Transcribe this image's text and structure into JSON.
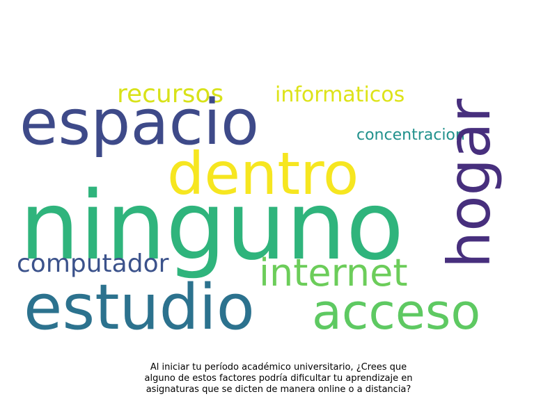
{
  "wordcloud": {
    "words": [
      {
        "id": "recursos",
        "text": "recursos",
        "color": "#d8e219"
      },
      {
        "id": "informaticos",
        "text": "informaticos",
        "color": "#dde318"
      },
      {
        "id": "espacio",
        "text": "espacio",
        "color": "#3e4a89"
      },
      {
        "id": "concentracion",
        "text": "concentracion",
        "color": "#21918c"
      },
      {
        "id": "dentro",
        "text": "dentro",
        "color": "#f6e620"
      },
      {
        "id": "ninguno",
        "text": "ninguno",
        "color": "#2fb47c"
      },
      {
        "id": "computador",
        "text": "computador",
        "color": "#3b528b"
      },
      {
        "id": "internet",
        "text": "internet",
        "color": "#6ccd5a"
      },
      {
        "id": "estudio",
        "text": "estudio",
        "color": "#2c728e"
      },
      {
        "id": "acceso",
        "text": "acceso",
        "color": "#5ec962"
      },
      {
        "id": "hogar",
        "text": "hogar",
        "color": "#472f7d"
      }
    ]
  },
  "caption": {
    "line1": "Al iniciar tu período académico universitario, ¿Crees que",
    "line2": "alguno de estos factores podría dificultar tu aprendizaje en",
    "line3": "asignaturas que se dicten de manera online o a distancia?"
  }
}
